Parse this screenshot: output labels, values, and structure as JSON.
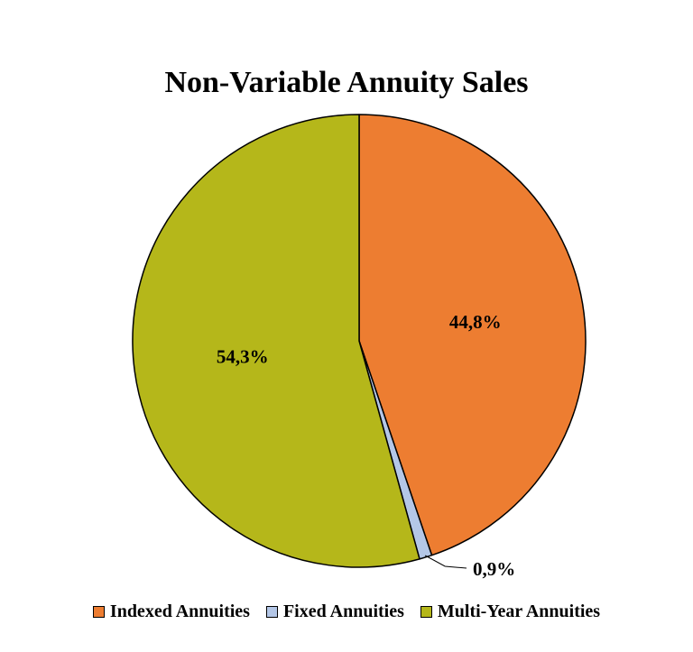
{
  "chart_data": {
    "type": "pie",
    "title": "Non-Variable Annuity Sales",
    "slices": [
      {
        "name": "Indexed Annuities",
        "value": 44.8,
        "label": "44,8%",
        "color": "#ED7D31"
      },
      {
        "name": "Fixed Annuities",
        "value": 0.9,
        "label": "0,9%",
        "color": "#B4C7E7"
      },
      {
        "name": "Multi-Year Annuities",
        "value": 54.3,
        "label": "54,3%",
        "color": "#B5B71A"
      }
    ],
    "start_angle": "12 o'clock",
    "direction": "clockwise",
    "legend_position": "bottom"
  }
}
